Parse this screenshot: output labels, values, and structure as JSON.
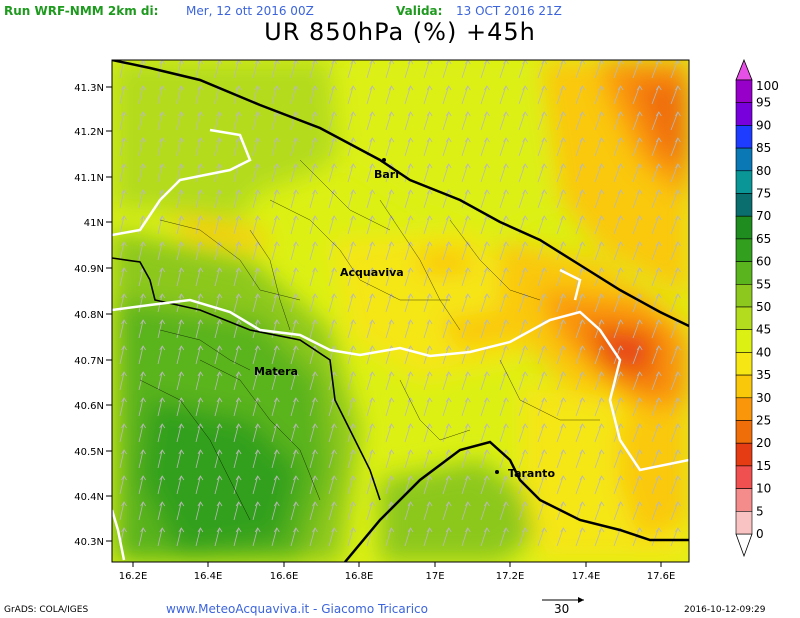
{
  "header": {
    "run_label": "Run WRF-NMM 2km di:",
    "run_date": "Mer, 12 ott 2016 00Z",
    "valid_label": "Valida:",
    "valid_date": "13 OCT 2016 21Z",
    "title": "UR 850hPa (%) +45h"
  },
  "map": {
    "lat_labels": [
      "41.3N",
      "41.2N",
      "41.1N",
      "41N",
      "40.9N",
      "40.8N",
      "40.7N",
      "40.6N",
      "40.5N",
      "40.4N",
      "40.3N"
    ],
    "lon_labels": [
      "16.2E",
      "16.4E",
      "16.6E",
      "16.8E",
      "17E",
      "17.2E",
      "17.4E",
      "17.6E"
    ],
    "cities": [
      {
        "name": "Bari"
      },
      {
        "name": "Acquaviva"
      },
      {
        "name": "Matera"
      },
      {
        "name": "Taranto"
      }
    ]
  },
  "legend": {
    "levels": [
      "100",
      "95",
      "90",
      "85",
      "80",
      "75",
      "70",
      "65",
      "60",
      "55",
      "50",
      "45",
      "40",
      "35",
      "30",
      "25",
      "20",
      "15",
      "10",
      "5",
      "0"
    ],
    "colors": [
      "#9600c8",
      "#7800dc",
      "#1e3cff",
      "#0a78b4",
      "#0a9696",
      "#0a6e6e",
      "#1e8c1e",
      "#32a01e",
      "#5ab41e",
      "#8cc81e",
      "#b4dc1e",
      "#dcf014",
      "#f5e614",
      "#fac80a",
      "#fa960a",
      "#f06e0a",
      "#e63c14",
      "#f05050",
      "#f58c8c",
      "#fac3c3"
    ]
  },
  "footer": {
    "grads": "GrADS: COLA/IGES",
    "site": "www.MeteoAcquaviva.it  -  Giacomo Tricarico",
    "wind_scale": "30",
    "timestamp": "2016-10-12-09:29"
  }
}
